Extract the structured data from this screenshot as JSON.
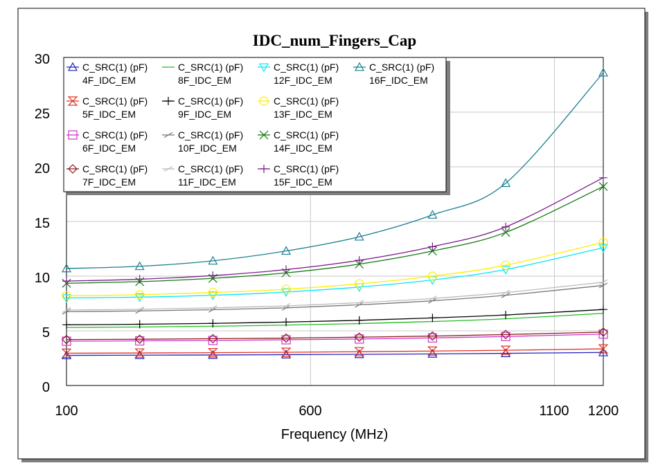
{
  "chart_data": {
    "type": "line",
    "title": "IDC_num_Fingers_Cap",
    "xlabel": "Frequency (MHz)",
    "ylabel": "",
    "xlim": [
      100,
      1200
    ],
    "ylim": [
      0,
      30
    ],
    "x_ticks": [
      "100",
      "600",
      "1100",
      "1200"
    ],
    "y_ticks": [
      "0",
      "5",
      "10",
      "15",
      "20",
      "25",
      "30"
    ],
    "grid": true,
    "legend_position": "top-left",
    "series": [
      {
        "name": "C_SRC(1) (pF)",
        "sub": "4F_IDC_EM",
        "color": "#1f1fbf",
        "marker": "triangle-up",
        "x": [
          100,
          250,
          400,
          550,
          700,
          850,
          1000,
          1200
        ],
        "y": [
          2.75,
          2.77,
          2.79,
          2.82,
          2.85,
          2.89,
          2.94,
          3.02
        ]
      },
      {
        "name": "C_SRC(1) (pF)",
        "sub": "5F_IDC_EM",
        "color": "#e0301e",
        "marker": "hourglass",
        "x": [
          100,
          250,
          400,
          550,
          700,
          850,
          1000,
          1200
        ],
        "y": [
          2.95,
          2.97,
          3.0,
          3.04,
          3.09,
          3.15,
          3.22,
          3.35
        ]
      },
      {
        "name": "C_SRC(1) (pF)",
        "sub": "6F_IDC_EM",
        "color": "#cc33cc",
        "marker": "square",
        "x": [
          100,
          250,
          400,
          550,
          700,
          850,
          1000,
          1200
        ],
        "y": [
          4.05,
          4.08,
          4.12,
          4.18,
          4.25,
          4.35,
          4.48,
          4.7
        ]
      },
      {
        "name": "C_SRC(1) (pF)",
        "sub": "7F_IDC_EM",
        "color": "#8b1a1a",
        "marker": "diamond",
        "x": [
          100,
          250,
          400,
          550,
          700,
          850,
          1000,
          1200
        ],
        "y": [
          4.2,
          4.23,
          4.28,
          4.33,
          4.42,
          4.52,
          4.66,
          4.88
        ]
      },
      {
        "name": "C_SRC(1) (pF)",
        "sub": "8F_IDC_EM",
        "color": "#22bb22",
        "marker": "none",
        "x": [
          100,
          250,
          400,
          550,
          700,
          850,
          1000,
          1200
        ],
        "y": [
          5.3,
          5.35,
          5.42,
          5.52,
          5.66,
          5.85,
          6.1,
          6.6
        ]
      },
      {
        "name": "C_SRC(1) (pF)",
        "sub": "9F_IDC_EM",
        "color": "#000000",
        "marker": "plus",
        "x": [
          100,
          250,
          400,
          550,
          700,
          850,
          1000,
          1200
        ],
        "y": [
          5.55,
          5.6,
          5.68,
          5.8,
          5.96,
          6.18,
          6.45,
          6.95
        ]
      },
      {
        "name": "C_SRC(1) (pF)",
        "sub": "10F_IDC_EM",
        "color": "#777777",
        "marker": "slash",
        "x": [
          100,
          250,
          400,
          550,
          700,
          850,
          1000,
          1200
        ],
        "y": [
          6.75,
          6.82,
          6.93,
          7.1,
          7.38,
          7.75,
          8.25,
          9.15
        ]
      },
      {
        "name": "C_SRC(1) (pF)",
        "sub": "11F_IDC_EM",
        "color": "#bbbbbb",
        "marker": "slash",
        "x": [
          100,
          250,
          400,
          550,
          700,
          850,
          1000,
          1200
        ],
        "y": [
          6.9,
          6.97,
          7.1,
          7.28,
          7.57,
          7.96,
          8.5,
          9.45
        ]
      },
      {
        "name": "C_SRC(1) (pF)",
        "sub": "12F_IDC_EM",
        "color": "#00e5ff",
        "marker": "triangle-down",
        "x": [
          100,
          250,
          400,
          550,
          700,
          850,
          1000,
          1200
        ],
        "y": [
          8.0,
          8.08,
          8.25,
          8.55,
          9.0,
          9.65,
          10.6,
          12.6
        ]
      },
      {
        "name": "C_SRC(1) (pF)",
        "sub": "13F_IDC_EM",
        "color": "#ffee00",
        "marker": "circle",
        "x": [
          100,
          250,
          400,
          550,
          700,
          850,
          1000,
          1200
        ],
        "y": [
          8.2,
          8.3,
          8.5,
          8.8,
          9.3,
          10.0,
          11.0,
          13.1
        ]
      },
      {
        "name": "C_SRC(1) (pF)",
        "sub": "14F_IDC_EM",
        "color": "#117711",
        "marker": "x",
        "x": [
          100,
          250,
          400,
          550,
          700,
          850,
          1000,
          1200
        ],
        "y": [
          9.35,
          9.5,
          9.8,
          10.3,
          11.1,
          12.3,
          14.0,
          18.2
        ]
      },
      {
        "name": "C_SRC(1) (pF)",
        "sub": "15F_IDC_EM",
        "color": "#7a1a8a",
        "marker": "plus",
        "x": [
          100,
          250,
          400,
          550,
          700,
          850,
          1000,
          1200
        ],
        "y": [
          9.55,
          9.72,
          10.05,
          10.6,
          11.45,
          12.7,
          14.5,
          19.0
        ]
      },
      {
        "name": "C_SRC(1) (pF)",
        "sub": "16F_IDC_EM",
        "color": "#1a7f8f",
        "marker": "triangle-up",
        "x": [
          100,
          250,
          400,
          550,
          700,
          850,
          1000,
          1200
        ],
        "y": [
          10.7,
          10.9,
          11.4,
          12.3,
          13.6,
          15.6,
          18.5,
          28.6
        ]
      }
    ]
  }
}
